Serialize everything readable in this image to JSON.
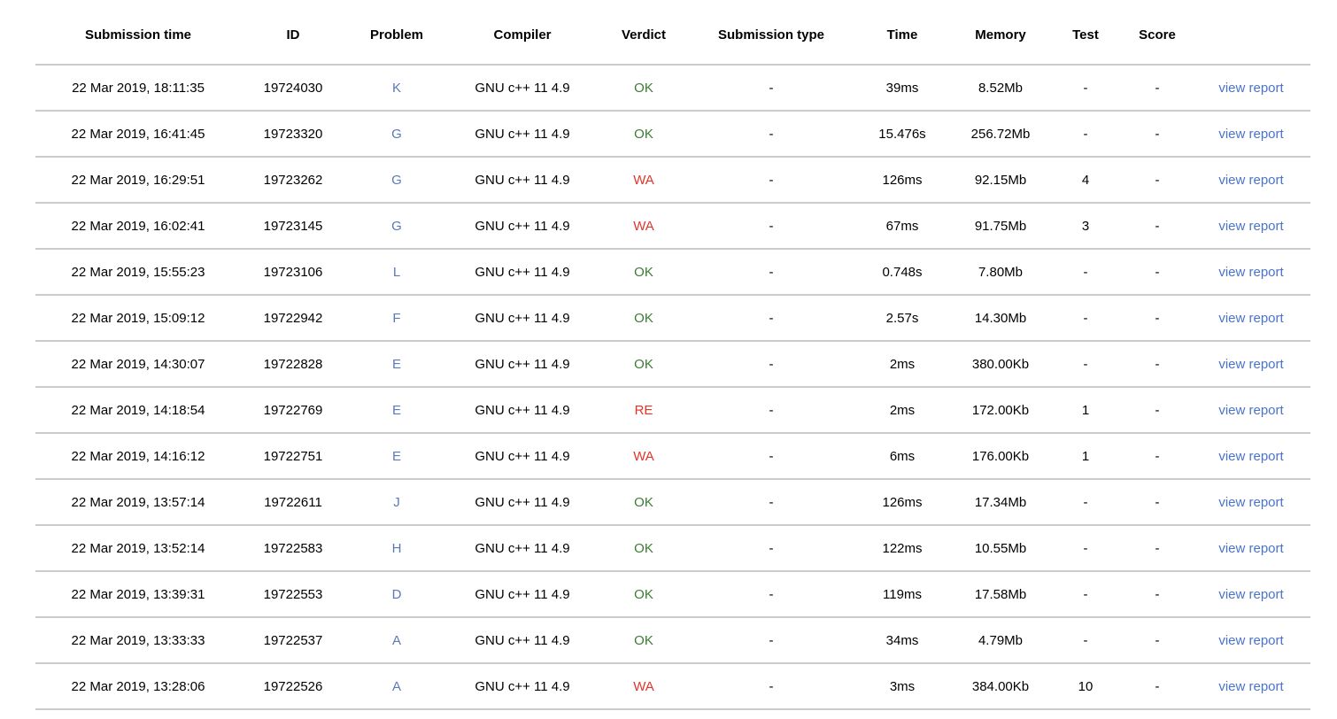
{
  "colors": {
    "problem_link": "#5b79b9",
    "verdict_ok": "#3a7d32",
    "verdict_fail": "#e0352b",
    "report_link": "#4a73c9",
    "row_divider": "#cccccc",
    "header_text": "#000000",
    "body_text": "#000000"
  },
  "table": {
    "report_link_label": "view report",
    "columns": [
      {
        "key": "submission_time",
        "label": "Submission time"
      },
      {
        "key": "id",
        "label": "ID"
      },
      {
        "key": "problem",
        "label": "Problem"
      },
      {
        "key": "compiler",
        "label": "Compiler"
      },
      {
        "key": "verdict",
        "label": "Verdict"
      },
      {
        "key": "submission_type",
        "label": "Submission type"
      },
      {
        "key": "time",
        "label": "Time"
      },
      {
        "key": "memory",
        "label": "Memory"
      },
      {
        "key": "test",
        "label": "Test"
      },
      {
        "key": "score",
        "label": "Score"
      },
      {
        "key": "report",
        "label": ""
      }
    ],
    "rows": [
      {
        "submission_time": "22 Mar 2019, 18:11:35",
        "id": "19724030",
        "problem": "K",
        "compiler": "GNU c++ 11 4.9",
        "verdict": "OK",
        "verdict_status": "ok",
        "submission_type": "-",
        "time": "39ms",
        "memory": "8.52Mb",
        "test": "-",
        "score": "-"
      },
      {
        "submission_time": "22 Mar 2019, 16:41:45",
        "id": "19723320",
        "problem": "G",
        "compiler": "GNU c++ 11 4.9",
        "verdict": "OK",
        "verdict_status": "ok",
        "submission_type": "-",
        "time": "15.476s",
        "memory": "256.72Mb",
        "test": "-",
        "score": "-"
      },
      {
        "submission_time": "22 Mar 2019, 16:29:51",
        "id": "19723262",
        "problem": "G",
        "compiler": "GNU c++ 11 4.9",
        "verdict": "WA",
        "verdict_status": "wa",
        "submission_type": "-",
        "time": "126ms",
        "memory": "92.15Mb",
        "test": "4",
        "score": "-"
      },
      {
        "submission_time": "22 Mar 2019, 16:02:41",
        "id": "19723145",
        "problem": "G",
        "compiler": "GNU c++ 11 4.9",
        "verdict": "WA",
        "verdict_status": "wa",
        "submission_type": "-",
        "time": "67ms",
        "memory": "91.75Mb",
        "test": "3",
        "score": "-"
      },
      {
        "submission_time": "22 Mar 2019, 15:55:23",
        "id": "19723106",
        "problem": "L",
        "compiler": "GNU c++ 11 4.9",
        "verdict": "OK",
        "verdict_status": "ok",
        "submission_type": "-",
        "time": "0.748s",
        "memory": "7.80Mb",
        "test": "-",
        "score": "-"
      },
      {
        "submission_time": "22 Mar 2019, 15:09:12",
        "id": "19722942",
        "problem": "F",
        "compiler": "GNU c++ 11 4.9",
        "verdict": "OK",
        "verdict_status": "ok",
        "submission_type": "-",
        "time": "2.57s",
        "memory": "14.30Mb",
        "test": "-",
        "score": "-"
      },
      {
        "submission_time": "22 Mar 2019, 14:30:07",
        "id": "19722828",
        "problem": "E",
        "compiler": "GNU c++ 11 4.9",
        "verdict": "OK",
        "verdict_status": "ok",
        "submission_type": "-",
        "time": "2ms",
        "memory": "380.00Kb",
        "test": "-",
        "score": "-"
      },
      {
        "submission_time": "22 Mar 2019, 14:18:54",
        "id": "19722769",
        "problem": "E",
        "compiler": "GNU c++ 11 4.9",
        "verdict": "RE",
        "verdict_status": "re",
        "submission_type": "-",
        "time": "2ms",
        "memory": "172.00Kb",
        "test": "1",
        "score": "-"
      },
      {
        "submission_time": "22 Mar 2019, 14:16:12",
        "id": "19722751",
        "problem": "E",
        "compiler": "GNU c++ 11 4.9",
        "verdict": "WA",
        "verdict_status": "wa",
        "submission_type": "-",
        "time": "6ms",
        "memory": "176.00Kb",
        "test": "1",
        "score": "-"
      },
      {
        "submission_time": "22 Mar 2019, 13:57:14",
        "id": "19722611",
        "problem": "J",
        "compiler": "GNU c++ 11 4.9",
        "verdict": "OK",
        "verdict_status": "ok",
        "submission_type": "-",
        "time": "126ms",
        "memory": "17.34Mb",
        "test": "-",
        "score": "-"
      },
      {
        "submission_time": "22 Mar 2019, 13:52:14",
        "id": "19722583",
        "problem": "H",
        "compiler": "GNU c++ 11 4.9",
        "verdict": "OK",
        "verdict_status": "ok",
        "submission_type": "-",
        "time": "122ms",
        "memory": "10.55Mb",
        "test": "-",
        "score": "-"
      },
      {
        "submission_time": "22 Mar 2019, 13:39:31",
        "id": "19722553",
        "problem": "D",
        "compiler": "GNU c++ 11 4.9",
        "verdict": "OK",
        "verdict_status": "ok",
        "submission_type": "-",
        "time": "119ms",
        "memory": "17.58Mb",
        "test": "-",
        "score": "-"
      },
      {
        "submission_time": "22 Mar 2019, 13:33:33",
        "id": "19722537",
        "problem": "A",
        "compiler": "GNU c++ 11 4.9",
        "verdict": "OK",
        "verdict_status": "ok",
        "submission_type": "-",
        "time": "34ms",
        "memory": "4.79Mb",
        "test": "-",
        "score": "-"
      },
      {
        "submission_time": "22 Mar 2019, 13:28:06",
        "id": "19722526",
        "problem": "A",
        "compiler": "GNU c++ 11 4.9",
        "verdict": "WA",
        "verdict_status": "wa",
        "submission_type": "-",
        "time": "3ms",
        "memory": "384.00Kb",
        "test": "10",
        "score": "-"
      }
    ]
  }
}
